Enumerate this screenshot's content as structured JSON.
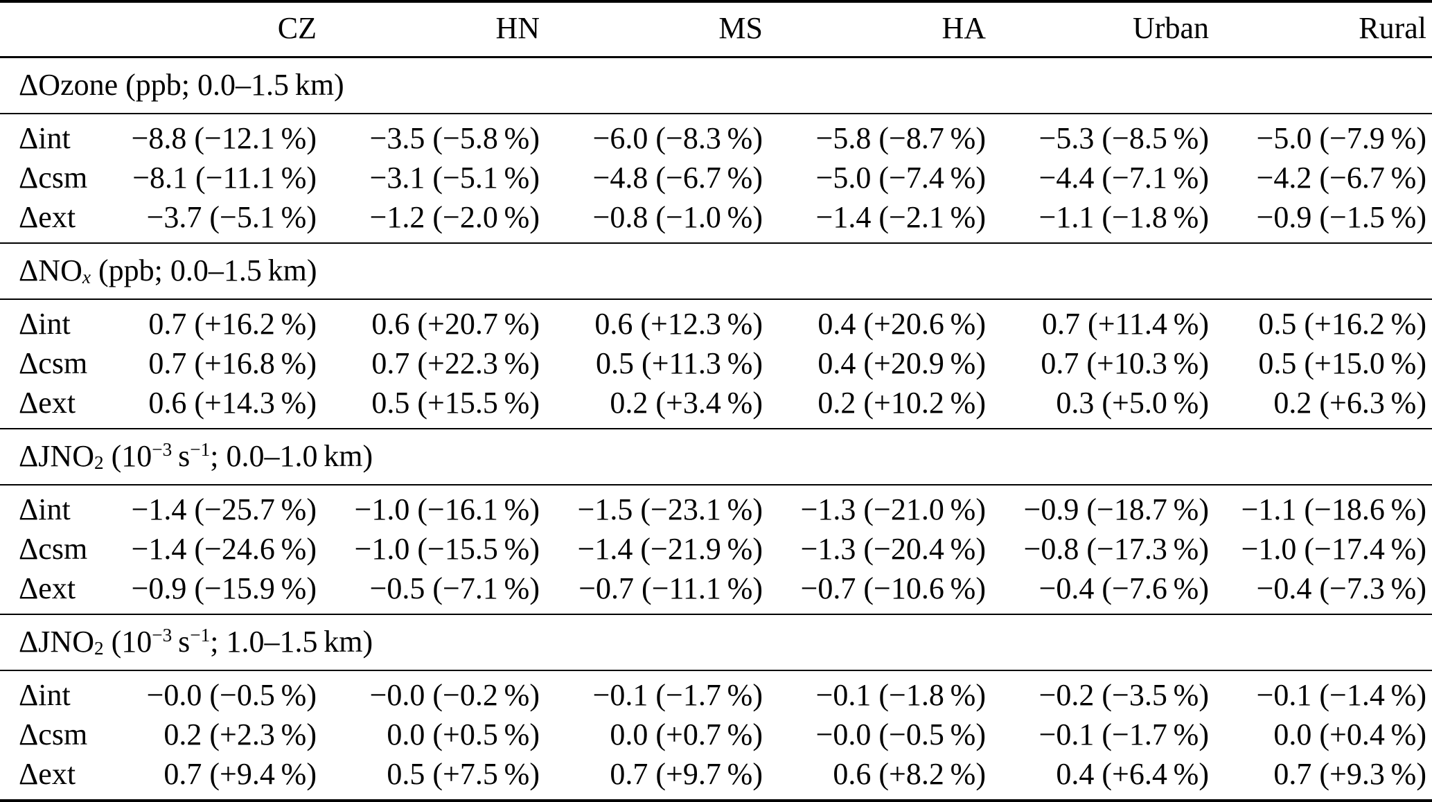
{
  "table": {
    "columns": [
      "",
      "CZ",
      "HN",
      "MS",
      "HA",
      "Urban",
      "Rural"
    ],
    "sections": [
      {
        "title_text": "ΔOzone (ppb; 0.0–1.5 km)",
        "title_parts": [
          {
            "t": "ΔOzone (ppb; 0.0–1.5 km)"
          }
        ],
        "rows": [
          {
            "label": "Δint",
            "values": [
              "−8.8 (−12.1 %)",
              "−3.5 (−5.8 %)",
              "−6.0 (−8.3 %)",
              "−5.8 (−8.7 %)",
              "−5.3 (−8.5 %)",
              "−5.0 (−7.9 %)"
            ]
          },
          {
            "label": "Δcsm",
            "values": [
              "−8.1 (−11.1 %)",
              "−3.1 (−5.1 %)",
              "−4.8 (−6.7 %)",
              "−5.0 (−7.4 %)",
              "−4.4 (−7.1 %)",
              "−4.2 (−6.7 %)"
            ]
          },
          {
            "label": "Δext",
            "values": [
              "−3.7 (−5.1 %)",
              "−1.2 (−2.0 %)",
              "−0.8 (−1.0 %)",
              "−1.4 (−2.1 %)",
              "−1.1 (−1.8 %)",
              "−0.9 (−1.5 %)"
            ]
          }
        ]
      },
      {
        "title_text": "ΔNOx (ppb; 0.0–1.5 km)",
        "title_parts": [
          {
            "t": "ΔNO"
          },
          {
            "t": "x",
            "s": "sub-italic"
          },
          {
            "t": " (ppb; 0.0–1.5 km)"
          }
        ],
        "rows": [
          {
            "label": "Δint",
            "values": [
              "0.7 (+16.2 %)",
              "0.6 (+20.7 %)",
              "0.6 (+12.3 %)",
              "0.4 (+20.6 %)",
              "0.7 (+11.4 %)",
              "0.5 (+16.2 %)"
            ]
          },
          {
            "label": "Δcsm",
            "values": [
              "0.7 (+16.8 %)",
              "0.7 (+22.3 %)",
              "0.5 (+11.3 %)",
              "0.4 (+20.9 %)",
              "0.7 (+10.3 %)",
              "0.5 (+15.0 %)"
            ]
          },
          {
            "label": "Δext",
            "values": [
              "0.6 (+14.3 %)",
              "0.5 (+15.5 %)",
              "0.2 (+3.4 %)",
              "0.2 (+10.2 %)",
              "0.3 (+5.0 %)",
              "0.2 (+6.3 %)"
            ]
          }
        ]
      },
      {
        "title_text": "ΔJNO2 (10−3 s−1; 0.0–1.0 km)",
        "title_parts": [
          {
            "t": "ΔJNO"
          },
          {
            "t": "2",
            "s": "sub"
          },
          {
            "t": " (10"
          },
          {
            "t": "−3",
            "s": "sup"
          },
          {
            "t": " s"
          },
          {
            "t": "−1",
            "s": "sup"
          },
          {
            "t": "; 0.0–1.0 km)"
          }
        ],
        "rows": [
          {
            "label": "Δint",
            "values": [
              "−1.4 (−25.7 %)",
              "−1.0 (−16.1 %)",
              "−1.5 (−23.1 %)",
              "−1.3 (−21.0 %)",
              "−0.9 (−18.7 %)",
              "−1.1 (−18.6 %)"
            ]
          },
          {
            "label": "Δcsm",
            "values": [
              "−1.4 (−24.6 %)",
              "−1.0 (−15.5 %)",
              "−1.4 (−21.9 %)",
              "−1.3 (−20.4 %)",
              "−0.8 (−17.3 %)",
              "−1.0 (−17.4 %)"
            ]
          },
          {
            "label": "Δext",
            "values": [
              "−0.9 (−15.9 %)",
              "−0.5 (−7.1 %)",
              "−0.7 (−11.1 %)",
              "−0.7 (−10.6 %)",
              "−0.4 (−7.6 %)",
              "−0.4 (−7.3 %)"
            ]
          }
        ]
      },
      {
        "title_text": "ΔJNO2 (10−3 s−1; 1.0–1.5 km)",
        "title_parts": [
          {
            "t": "ΔJNO"
          },
          {
            "t": "2",
            "s": "sub"
          },
          {
            "t": " (10"
          },
          {
            "t": "−3",
            "s": "sup"
          },
          {
            "t": " s"
          },
          {
            "t": "−1",
            "s": "sup"
          },
          {
            "t": "; 1.0–1.5 km)"
          }
        ],
        "rows": [
          {
            "label": "Δint",
            "values": [
              "−0.0 (−0.5 %)",
              "−0.0 (−0.2 %)",
              "−0.1 (−1.7 %)",
              "−0.1 (−1.8 %)",
              "−0.2 (−3.5 %)",
              "−0.1 (−1.4 %)"
            ]
          },
          {
            "label": "Δcsm",
            "values": [
              "0.2 (+2.3 %)",
              "0.0 (+0.5 %)",
              "0.0 (+0.7 %)",
              "−0.0 (−0.5 %)",
              "−0.1 (−1.7 %)",
              "0.0 (+0.4 %)"
            ]
          },
          {
            "label": "Δext",
            "values": [
              "0.7 (+9.4 %)",
              "0.5 (+7.5 %)",
              "0.7 (+9.7 %)",
              "0.6 (+8.2 %)",
              "0.4 (+6.4 %)",
              "0.7 (+9.3 %)"
            ]
          }
        ]
      }
    ]
  }
}
